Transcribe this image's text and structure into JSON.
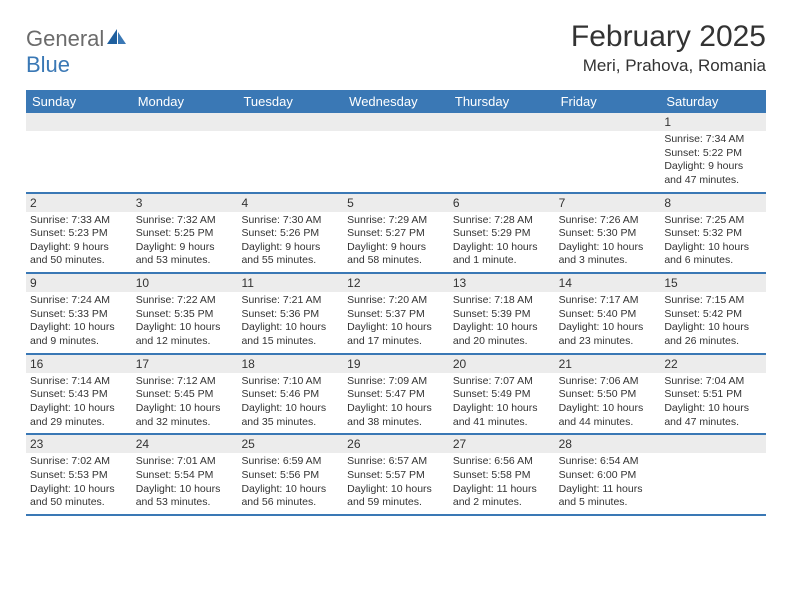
{
  "logo": {
    "part1": "General",
    "part2": "Blue"
  },
  "title": "February 2025",
  "location": "Meri, Prahova, Romania",
  "dayHeaders": [
    "Sunday",
    "Monday",
    "Tuesday",
    "Wednesday",
    "Thursday",
    "Friday",
    "Saturday"
  ],
  "colors": {
    "headerBar": "#3a78b5",
    "dayNumBg": "#ececec",
    "text": "#333333",
    "logoGray": "#6b6b6b",
    "logoBlue": "#3a78b5",
    "pageBg": "#ffffff"
  },
  "typography": {
    "monthTitleSize": 30,
    "locationSize": 17,
    "dayHeaderSize": 13,
    "dayNumSize": 12,
    "bodySize": 10.5
  },
  "weeks": [
    [
      {
        "n": "",
        "lines": []
      },
      {
        "n": "",
        "lines": []
      },
      {
        "n": "",
        "lines": []
      },
      {
        "n": "",
        "lines": []
      },
      {
        "n": "",
        "lines": []
      },
      {
        "n": "",
        "lines": []
      },
      {
        "n": "1",
        "lines": [
          "Sunrise: 7:34 AM",
          "Sunset: 5:22 PM",
          "Daylight: 9 hours",
          "and 47 minutes."
        ]
      }
    ],
    [
      {
        "n": "2",
        "lines": [
          "Sunrise: 7:33 AM",
          "Sunset: 5:23 PM",
          "Daylight: 9 hours",
          "and 50 minutes."
        ]
      },
      {
        "n": "3",
        "lines": [
          "Sunrise: 7:32 AM",
          "Sunset: 5:25 PM",
          "Daylight: 9 hours",
          "and 53 minutes."
        ]
      },
      {
        "n": "4",
        "lines": [
          "Sunrise: 7:30 AM",
          "Sunset: 5:26 PM",
          "Daylight: 9 hours",
          "and 55 minutes."
        ]
      },
      {
        "n": "5",
        "lines": [
          "Sunrise: 7:29 AM",
          "Sunset: 5:27 PM",
          "Daylight: 9 hours",
          "and 58 minutes."
        ]
      },
      {
        "n": "6",
        "lines": [
          "Sunrise: 7:28 AM",
          "Sunset: 5:29 PM",
          "Daylight: 10 hours",
          "and 1 minute."
        ]
      },
      {
        "n": "7",
        "lines": [
          "Sunrise: 7:26 AM",
          "Sunset: 5:30 PM",
          "Daylight: 10 hours",
          "and 3 minutes."
        ]
      },
      {
        "n": "8",
        "lines": [
          "Sunrise: 7:25 AM",
          "Sunset: 5:32 PM",
          "Daylight: 10 hours",
          "and 6 minutes."
        ]
      }
    ],
    [
      {
        "n": "9",
        "lines": [
          "Sunrise: 7:24 AM",
          "Sunset: 5:33 PM",
          "Daylight: 10 hours",
          "and 9 minutes."
        ]
      },
      {
        "n": "10",
        "lines": [
          "Sunrise: 7:22 AM",
          "Sunset: 5:35 PM",
          "Daylight: 10 hours",
          "and 12 minutes."
        ]
      },
      {
        "n": "11",
        "lines": [
          "Sunrise: 7:21 AM",
          "Sunset: 5:36 PM",
          "Daylight: 10 hours",
          "and 15 minutes."
        ]
      },
      {
        "n": "12",
        "lines": [
          "Sunrise: 7:20 AM",
          "Sunset: 5:37 PM",
          "Daylight: 10 hours",
          "and 17 minutes."
        ]
      },
      {
        "n": "13",
        "lines": [
          "Sunrise: 7:18 AM",
          "Sunset: 5:39 PM",
          "Daylight: 10 hours",
          "and 20 minutes."
        ]
      },
      {
        "n": "14",
        "lines": [
          "Sunrise: 7:17 AM",
          "Sunset: 5:40 PM",
          "Daylight: 10 hours",
          "and 23 minutes."
        ]
      },
      {
        "n": "15",
        "lines": [
          "Sunrise: 7:15 AM",
          "Sunset: 5:42 PM",
          "Daylight: 10 hours",
          "and 26 minutes."
        ]
      }
    ],
    [
      {
        "n": "16",
        "lines": [
          "Sunrise: 7:14 AM",
          "Sunset: 5:43 PM",
          "Daylight: 10 hours",
          "and 29 minutes."
        ]
      },
      {
        "n": "17",
        "lines": [
          "Sunrise: 7:12 AM",
          "Sunset: 5:45 PM",
          "Daylight: 10 hours",
          "and 32 minutes."
        ]
      },
      {
        "n": "18",
        "lines": [
          "Sunrise: 7:10 AM",
          "Sunset: 5:46 PM",
          "Daylight: 10 hours",
          "and 35 minutes."
        ]
      },
      {
        "n": "19",
        "lines": [
          "Sunrise: 7:09 AM",
          "Sunset: 5:47 PM",
          "Daylight: 10 hours",
          "and 38 minutes."
        ]
      },
      {
        "n": "20",
        "lines": [
          "Sunrise: 7:07 AM",
          "Sunset: 5:49 PM",
          "Daylight: 10 hours",
          "and 41 minutes."
        ]
      },
      {
        "n": "21",
        "lines": [
          "Sunrise: 7:06 AM",
          "Sunset: 5:50 PM",
          "Daylight: 10 hours",
          "and 44 minutes."
        ]
      },
      {
        "n": "22",
        "lines": [
          "Sunrise: 7:04 AM",
          "Sunset: 5:51 PM",
          "Daylight: 10 hours",
          "and 47 minutes."
        ]
      }
    ],
    [
      {
        "n": "23",
        "lines": [
          "Sunrise: 7:02 AM",
          "Sunset: 5:53 PM",
          "Daylight: 10 hours",
          "and 50 minutes."
        ]
      },
      {
        "n": "24",
        "lines": [
          "Sunrise: 7:01 AM",
          "Sunset: 5:54 PM",
          "Daylight: 10 hours",
          "and 53 minutes."
        ]
      },
      {
        "n": "25",
        "lines": [
          "Sunrise: 6:59 AM",
          "Sunset: 5:56 PM",
          "Daylight: 10 hours",
          "and 56 minutes."
        ]
      },
      {
        "n": "26",
        "lines": [
          "Sunrise: 6:57 AM",
          "Sunset: 5:57 PM",
          "Daylight: 10 hours",
          "and 59 minutes."
        ]
      },
      {
        "n": "27",
        "lines": [
          "Sunrise: 6:56 AM",
          "Sunset: 5:58 PM",
          "Daylight: 11 hours",
          "and 2 minutes."
        ]
      },
      {
        "n": "28",
        "lines": [
          "Sunrise: 6:54 AM",
          "Sunset: 6:00 PM",
          "Daylight: 11 hours",
          "and 5 minutes."
        ]
      },
      {
        "n": "",
        "lines": []
      }
    ]
  ]
}
